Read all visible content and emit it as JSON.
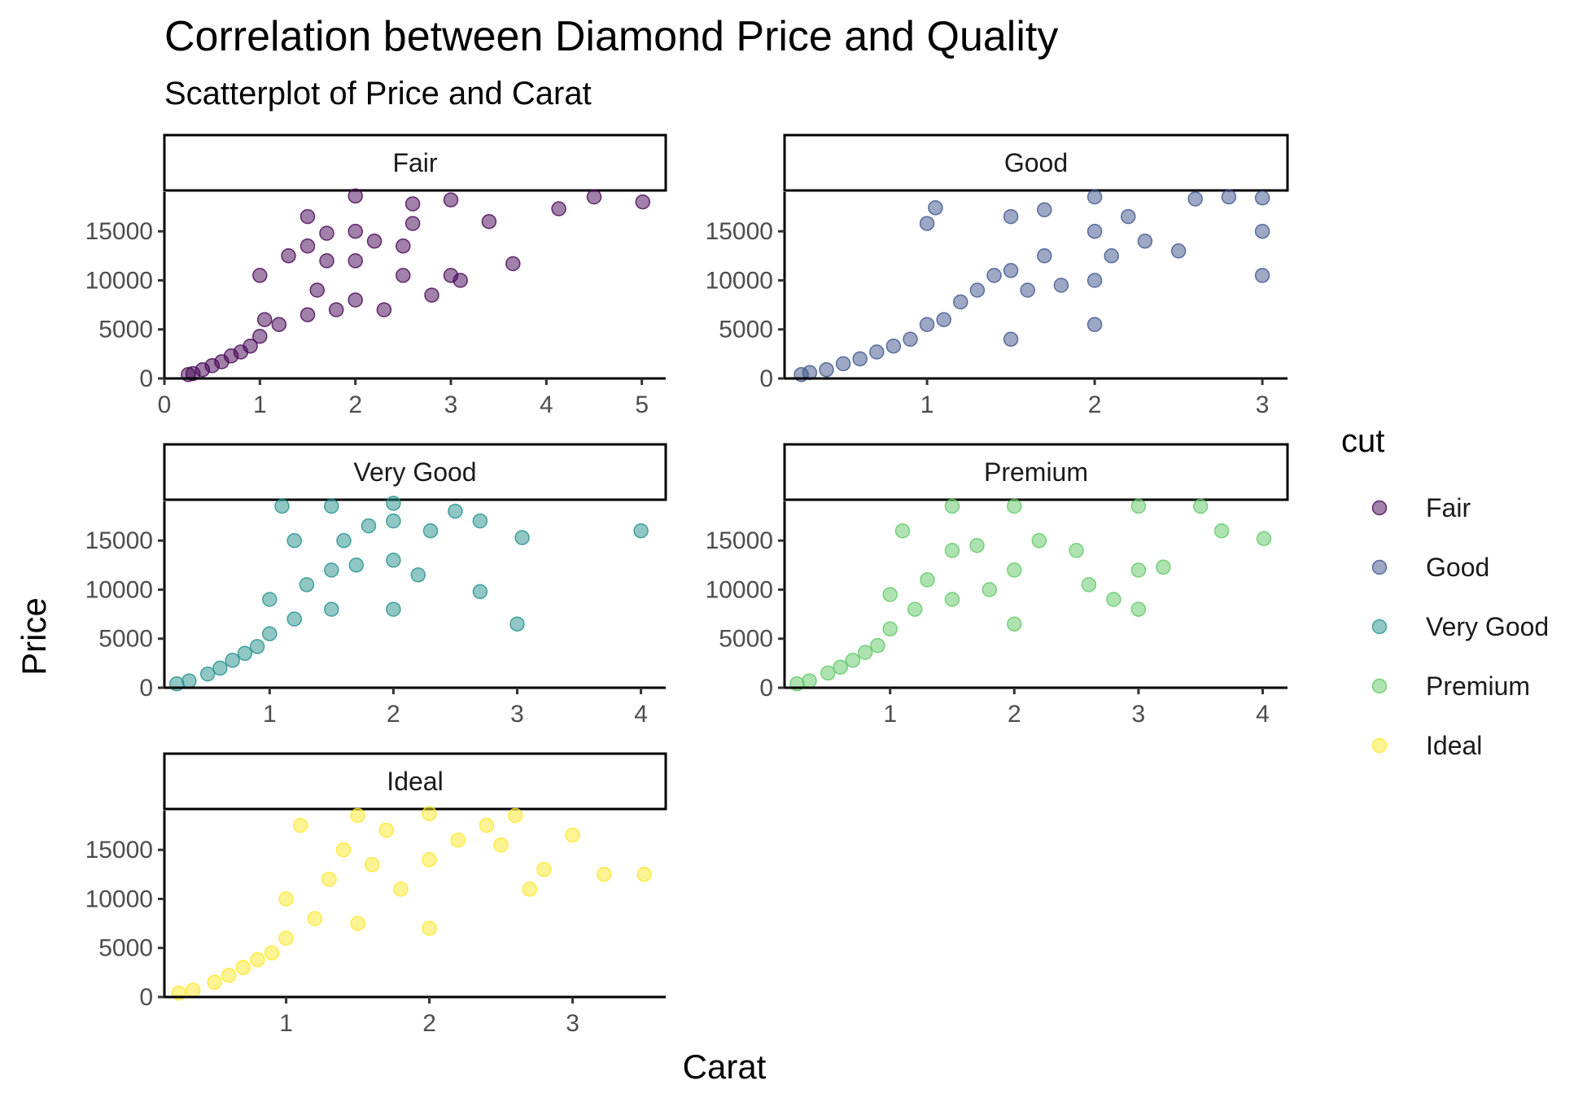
{
  "chart_data": {
    "type": "scatter",
    "title": "Correlation between Diamond Price and Quality",
    "subtitle": "Scatterplot of Price and Carat",
    "xlabel": "Carat",
    "ylabel": "Price",
    "legend": {
      "title": "cut",
      "position": "right",
      "entries": [
        {
          "label": "Fair",
          "color": "#440154"
        },
        {
          "label": "Good",
          "color": "#3B528B"
        },
        {
          "label": "Very Good",
          "color": "#21908C"
        },
        {
          "label": "Premium",
          "color": "#5DC863"
        },
        {
          "label": "Ideal",
          "color": "#FDE725"
        }
      ]
    },
    "grid": false,
    "facet_scales": "free_x",
    "y_ticks": [
      0,
      5000,
      10000,
      15000
    ],
    "ylim": [
      0,
      19000
    ],
    "facets": [
      {
        "label": "Fair",
        "color": "#440154",
        "xlim": [
          0,
          5.25
        ],
        "x_ticks": [
          0,
          1,
          2,
          3,
          4,
          5
        ],
        "points": [
          [
            0.25,
            400
          ],
          [
            0.3,
            500
          ],
          [
            0.4,
            900
          ],
          [
            0.5,
            1300
          ],
          [
            0.6,
            1700
          ],
          [
            0.7,
            2300
          ],
          [
            0.8,
            2700
          ],
          [
            0.9,
            3300
          ],
          [
            1.0,
            4300
          ],
          [
            1.0,
            10500
          ],
          [
            1.05,
            6000
          ],
          [
            1.2,
            5500
          ],
          [
            1.3,
            12500
          ],
          [
            1.5,
            6500
          ],
          [
            1.5,
            13500
          ],
          [
            1.5,
            16500
          ],
          [
            1.6,
            9000
          ],
          [
            1.7,
            12000
          ],
          [
            1.7,
            14800
          ],
          [
            1.8,
            7000
          ],
          [
            2.0,
            8000
          ],
          [
            2.0,
            12000
          ],
          [
            2.0,
            15000
          ],
          [
            2.0,
            18600
          ],
          [
            2.2,
            14000
          ],
          [
            2.3,
            7000
          ],
          [
            2.5,
            13500
          ],
          [
            2.5,
            10500
          ],
          [
            2.6,
            17800
          ],
          [
            2.6,
            15800
          ],
          [
            2.8,
            8500
          ],
          [
            3.0,
            10500
          ],
          [
            3.0,
            18200
          ],
          [
            3.1,
            10000
          ],
          [
            3.4,
            16000
          ],
          [
            3.65,
            11700
          ],
          [
            4.13,
            17300
          ],
          [
            4.5,
            18500
          ],
          [
            5.01,
            18000
          ]
        ]
      },
      {
        "label": "Good",
        "color": "#3B528B",
        "xlim": [
          0.15,
          3.15
        ],
        "x_ticks": [
          1,
          2,
          3
        ],
        "points": [
          [
            0.25,
            400
          ],
          [
            0.3,
            600
          ],
          [
            0.4,
            900
          ],
          [
            0.5,
            1500
          ],
          [
            0.6,
            2000
          ],
          [
            0.7,
            2700
          ],
          [
            0.8,
            3300
          ],
          [
            0.9,
            4000
          ],
          [
            1.0,
            5500
          ],
          [
            1.0,
            15800
          ],
          [
            1.05,
            17400
          ],
          [
            1.1,
            6000
          ],
          [
            1.2,
            7800
          ],
          [
            1.3,
            9000
          ],
          [
            1.4,
            10500
          ],
          [
            1.5,
            4000
          ],
          [
            1.5,
            11000
          ],
          [
            1.5,
            16500
          ],
          [
            1.6,
            9000
          ],
          [
            1.7,
            12500
          ],
          [
            1.7,
            17200
          ],
          [
            1.8,
            9500
          ],
          [
            2.0,
            5500
          ],
          [
            2.0,
            10000
          ],
          [
            2.0,
            15000
          ],
          [
            2.0,
            18500
          ],
          [
            2.1,
            12500
          ],
          [
            2.2,
            16500
          ],
          [
            2.3,
            14000
          ],
          [
            2.5,
            13000
          ],
          [
            2.6,
            18300
          ],
          [
            2.8,
            18500
          ],
          [
            3.0,
            10500
          ],
          [
            3.0,
            15000
          ],
          [
            3.0,
            18400
          ]
        ]
      },
      {
        "label": "Very Good",
        "color": "#21908C",
        "xlim": [
          0.15,
          4.2
        ],
        "x_ticks": [
          1,
          2,
          3,
          4
        ],
        "points": [
          [
            0.25,
            400
          ],
          [
            0.35,
            700
          ],
          [
            0.5,
            1400
          ],
          [
            0.6,
            2000
          ],
          [
            0.7,
            2800
          ],
          [
            0.8,
            3500
          ],
          [
            0.9,
            4200
          ],
          [
            1.0,
            5500
          ],
          [
            1.0,
            9000
          ],
          [
            1.1,
            18500
          ],
          [
            1.2,
            7000
          ],
          [
            1.2,
            15000
          ],
          [
            1.3,
            10500
          ],
          [
            1.5,
            8000
          ],
          [
            1.5,
            12000
          ],
          [
            1.5,
            18500
          ],
          [
            1.6,
            15000
          ],
          [
            1.7,
            12500
          ],
          [
            1.8,
            16500
          ],
          [
            2.0,
            8000
          ],
          [
            2.0,
            13000
          ],
          [
            2.0,
            17000
          ],
          [
            2.0,
            18800
          ],
          [
            2.2,
            11500
          ],
          [
            2.3,
            16000
          ],
          [
            2.5,
            18000
          ],
          [
            2.7,
            17000
          ],
          [
            2.7,
            9800
          ],
          [
            3.0,
            6500
          ],
          [
            3.04,
            15300
          ],
          [
            4.0,
            16000
          ]
        ]
      },
      {
        "label": "Premium",
        "color": "#5DC863",
        "xlim": [
          0.15,
          4.2
        ],
        "x_ticks": [
          1,
          2,
          3,
          4
        ],
        "points": [
          [
            0.25,
            400
          ],
          [
            0.35,
            700
          ],
          [
            0.5,
            1500
          ],
          [
            0.6,
            2100
          ],
          [
            0.7,
            2800
          ],
          [
            0.8,
            3600
          ],
          [
            0.9,
            4300
          ],
          [
            1.0,
            6000
          ],
          [
            1.0,
            9500
          ],
          [
            1.1,
            16000
          ],
          [
            1.2,
            8000
          ],
          [
            1.3,
            11000
          ],
          [
            1.5,
            9000
          ],
          [
            1.5,
            14000
          ],
          [
            1.5,
            18500
          ],
          [
            1.7,
            14500
          ],
          [
            1.8,
            10000
          ],
          [
            2.0,
            6500
          ],
          [
            2.0,
            12000
          ],
          [
            2.0,
            18500
          ],
          [
            2.2,
            15000
          ],
          [
            2.5,
            14000
          ],
          [
            2.6,
            10500
          ],
          [
            2.8,
            9000
          ],
          [
            3.0,
            8000
          ],
          [
            3.0,
            12000
          ],
          [
            3.0,
            18500
          ],
          [
            3.2,
            12300
          ],
          [
            3.5,
            18500
          ],
          [
            3.67,
            16000
          ],
          [
            4.01,
            15200
          ]
        ]
      },
      {
        "label": "Ideal",
        "color": "#FDE725",
        "xlim": [
          0.15,
          3.65
        ],
        "x_ticks": [
          1,
          2,
          3
        ],
        "points": [
          [
            0.25,
            400
          ],
          [
            0.35,
            700
          ],
          [
            0.5,
            1500
          ],
          [
            0.6,
            2200
          ],
          [
            0.7,
            3000
          ],
          [
            0.8,
            3800
          ],
          [
            0.9,
            4500
          ],
          [
            1.0,
            6000
          ],
          [
            1.0,
            10000
          ],
          [
            1.1,
            17500
          ],
          [
            1.2,
            8000
          ],
          [
            1.3,
            12000
          ],
          [
            1.4,
            15000
          ],
          [
            1.5,
            7500
          ],
          [
            1.5,
            18500
          ],
          [
            1.6,
            13500
          ],
          [
            1.7,
            17000
          ],
          [
            1.8,
            11000
          ],
          [
            2.0,
            7000
          ],
          [
            2.0,
            14000
          ],
          [
            2.0,
            18700
          ],
          [
            2.2,
            16000
          ],
          [
            2.4,
            17500
          ],
          [
            2.5,
            15500
          ],
          [
            2.6,
            18500
          ],
          [
            2.7,
            11000
          ],
          [
            2.8,
            13000
          ],
          [
            3.0,
            16500
          ],
          [
            3.22,
            12500
          ],
          [
            3.5,
            12500
          ]
        ]
      }
    ]
  }
}
